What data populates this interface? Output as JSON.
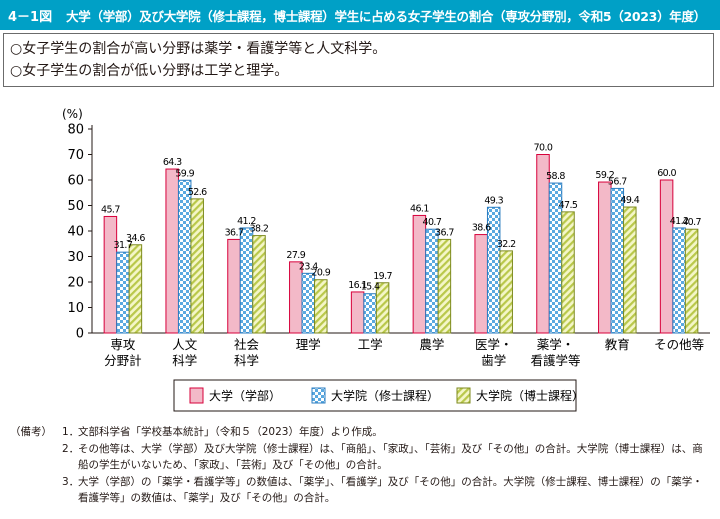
{
  "header": {
    "figure_number": "4－1図",
    "title": "大学（学部）及び大学院（修士課程，博士課程）学生に占める女子学生の割合（専攻分野別，令和5（2023）年度）"
  },
  "summary": [
    "○女子学生の割合が高い分野は薬学・看護学等と人文科学。",
    "○女子学生の割合が低い分野は工学と理学。"
  ],
  "chart_data": {
    "type": "bar",
    "ylabel": "(%)",
    "ylim": [
      0,
      80
    ],
    "yticks": [
      "0",
      "10",
      "20",
      "30",
      "40",
      "50",
      "60",
      "70",
      "80"
    ],
    "grid": false,
    "legend_position": "bottom",
    "categories": [
      [
        "専攻",
        "分野計"
      ],
      [
        "人文",
        "科学"
      ],
      [
        "社会",
        "科学"
      ],
      [
        "理学"
      ],
      [
        "工学"
      ],
      [
        "農学"
      ],
      [
        "医学・",
        "歯学"
      ],
      [
        "薬学・",
        "看護学等"
      ],
      [
        "教育"
      ],
      [
        "その他等"
      ]
    ],
    "series": [
      {
        "name": "大学（学部）",
        "color": "#f3b9c8",
        "pattern": "solid",
        "values": [
          45.7,
          64.3,
          36.7,
          27.9,
          16.1,
          46.1,
          38.6,
          70.0,
          59.2,
          60.0
        ],
        "labels": [
          "45.7",
          "64.3",
          "36.7",
          "27.9",
          "16.1",
          "46.1",
          "38.6",
          "70.0",
          "59.2",
          "60.0"
        ]
      },
      {
        "name": "大学院（修士課程）",
        "color": "#5aa9e0",
        "pattern": "check",
        "values": [
          31.7,
          59.9,
          41.2,
          23.4,
          15.4,
          40.7,
          49.3,
          58.8,
          56.7,
          41.2
        ],
        "labels": [
          "31.7",
          "59.9",
          "41.2",
          "23.4",
          "15.4",
          "40.7",
          "49.3",
          "58.8",
          "56.7",
          "41.2"
        ]
      },
      {
        "name": "大学院（博士課程）",
        "color": "#cfd96a",
        "pattern": "stripe",
        "values": [
          34.6,
          52.6,
          38.2,
          20.9,
          19.7,
          36.7,
          32.2,
          47.5,
          49.4,
          40.7
        ],
        "labels": [
          "34.6",
          "52.6",
          "38.2",
          "20.9",
          "19.7",
          "36.7",
          "32.2",
          "47.5",
          "49.4",
          "40.7"
        ]
      }
    ]
  },
  "notes": {
    "label": "（備考）",
    "items": [
      {
        "num": "1．",
        "text": "文部科学省「学校基本統計」（令和５（2023）年度）より作成。"
      },
      {
        "num": "2．",
        "text": "その他等は、大学（学部）及び大学院（修士課程）は、「商船」、「家政」、「芸術」及び「その他」の合計。大学院（博士課程）は、商船の学生がいないため、「家政」、「芸術」及び「その他」の合計。"
      },
      {
        "num": "3．",
        "text": "大学（学部）の「薬学・看護学等」の数値は、「薬学」、「看護学」及び「その他」の合計。大学院（修士課程、博士課程）の「薬学・看護学等」の数値は、「薬学」及び「その他」の合計。"
      }
    ]
  }
}
